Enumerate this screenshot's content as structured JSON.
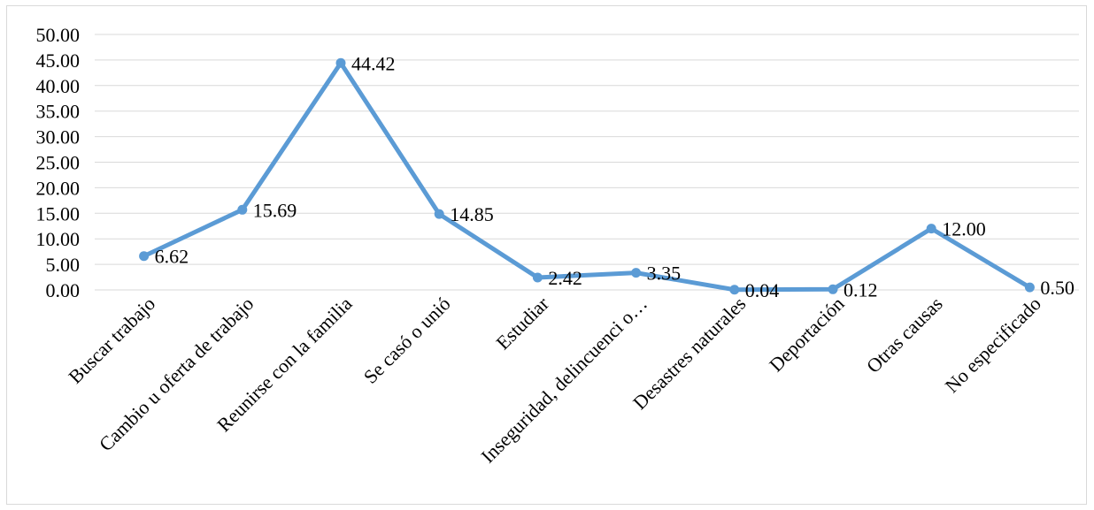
{
  "chart_data": {
    "type": "line",
    "categories": [
      "Buscar trabajo",
      "Cambio u oferta de trabajo",
      "Reunirse con la familia",
      "Se casó o unió",
      "Estudiar",
      "Inseguridad, delincuenci o…",
      "Desastres naturales",
      "Deportación",
      "Otras causas",
      "No especificado"
    ],
    "values": [
      6.62,
      15.69,
      44.42,
      14.85,
      2.42,
      3.35,
      0.04,
      0.12,
      12.0,
      0.5
    ],
    "data_labels": [
      "6.62",
      "15.69",
      "44.42",
      "14.85",
      "2.42",
      "3.35",
      "0.04",
      "0.12",
      "12.00",
      "0.50"
    ],
    "y_ticks": [
      "0.00",
      "5.00",
      "10.00",
      "15.00",
      "20.00",
      "25.00",
      "30.00",
      "35.00",
      "40.00",
      "45.00",
      "50.00"
    ],
    "ylim": [
      0,
      50
    ],
    "y_step": 5,
    "grid": true,
    "legend": "none",
    "title": "",
    "xlabel": "",
    "ylabel": "",
    "colors": {
      "line": "#5b9bd5",
      "grid": "#d9d9d9",
      "text": "#000000"
    }
  }
}
